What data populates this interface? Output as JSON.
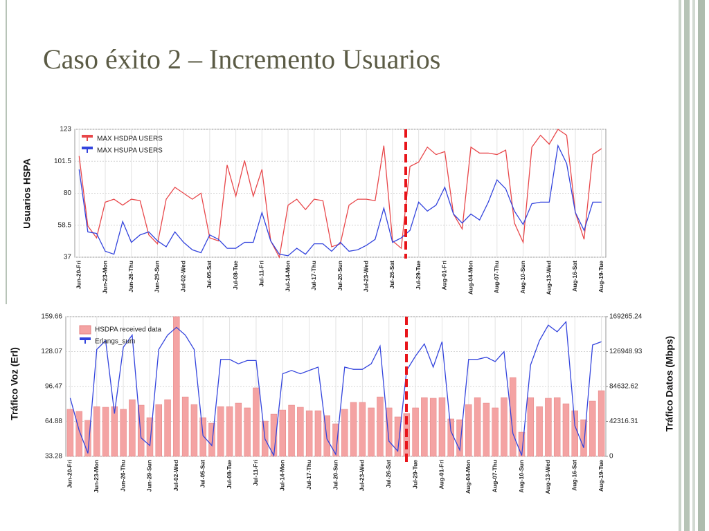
{
  "slide": {
    "title": "Caso éxito 2 – Incremento Usuarios"
  },
  "chart_data": [
    {
      "type": "line",
      "ylabel": "Usuarios HSPA",
      "categories": [
        "Jun-20-Fri",
        null,
        null,
        "Jun-23-Mon",
        null,
        null,
        "Jun-26-Thu",
        null,
        null,
        "Jun-29-Sun",
        null,
        null,
        "Jul-02-Wed",
        null,
        null,
        "Jul-05-Sat",
        null,
        null,
        "Jul-08-Tue",
        null,
        null,
        "Jul-11-Fri",
        null,
        null,
        "Jul-14-Mon",
        null,
        null,
        "Jul-17-Thu",
        null,
        null,
        "Jul-20-Sun",
        null,
        null,
        "Jul-23-Wed",
        null,
        null,
        "Jul-26-Sat",
        null,
        null,
        "Jul-29-Tue",
        null,
        null,
        "Aug-01-Fri",
        null,
        null,
        "Aug-04-Mon",
        null,
        null,
        "Aug-07-Thu",
        null,
        null,
        "Aug-10-Sun",
        null,
        null,
        "Aug-13-Wed",
        null,
        null,
        "Aug-16-Sat",
        null,
        null,
        "Aug-19-Tue"
      ],
      "series": [
        {
          "name": "MAX HSDPA USERS",
          "color": "#e8474a",
          "values": [
            105,
            58,
            50,
            74,
            76,
            72,
            76,
            75,
            52,
            46,
            76,
            84,
            80,
            76,
            80,
            50,
            48,
            99,
            78,
            102,
            78,
            96,
            48,
            37,
            72,
            76,
            69,
            76,
            75,
            44,
            46,
            72,
            76,
            76,
            75,
            112,
            48,
            43,
            98,
            101,
            111,
            106,
            108,
            66,
            56,
            111,
            107,
            107,
            106,
            109,
            60,
            47,
            111,
            119,
            113,
            123,
            119,
            67,
            49,
            106,
            110
          ]
        },
        {
          "name": "MAX HSUPA USERS",
          "color": "#3344dd",
          "values": [
            96,
            54,
            53,
            41,
            39,
            61,
            47,
            52,
            54,
            48,
            44,
            54,
            47,
            42,
            40,
            52,
            49,
            43,
            43,
            47,
            47,
            67,
            48,
            39,
            38,
            43,
            39,
            46,
            46,
            41,
            47,
            41,
            42,
            45,
            49,
            70,
            47,
            50,
            55,
            74,
            68,
            72,
            84,
            66,
            60,
            66,
            62,
            74,
            89,
            83,
            68,
            59,
            73,
            74,
            74,
            112,
            100,
            67,
            55,
            74,
            74
          ]
        }
      ],
      "ylim": [
        37,
        123
      ],
      "yticks": [
        37,
        58.5,
        80,
        101.5,
        123
      ],
      "grid": true,
      "legend": "upper left"
    },
    {
      "type": "combo",
      "ylabel": "Tráfico Voz (Erl)",
      "y2label": "Tráfico Datos (Mbps)",
      "categories": [
        "Jun-20-Fri",
        null,
        null,
        "Jun-23-Mon",
        null,
        null,
        "Jun-26-Thu",
        null,
        null,
        "Jun-29-Sun",
        null,
        null,
        "Jul-02-Wed",
        null,
        null,
        "Jul-05-Sat",
        null,
        null,
        "Jul-08-Tue",
        null,
        null,
        "Jul-11-Fri",
        null,
        null,
        "Jul-14-Mon",
        null,
        null,
        "Jul-17-Thu",
        null,
        null,
        "Jul-20-Sun",
        null,
        null,
        "Jul-23-Wed",
        null,
        null,
        "Jul-26-Sat",
        null,
        null,
        "Jul-29-Tue",
        null,
        null,
        "Aug-01-Fri",
        null,
        null,
        "Aug-04-Mon",
        null,
        null,
        "Aug-07-Thu",
        null,
        null,
        "Aug-10-Sun",
        null,
        null,
        "Aug-13-Wed",
        null,
        null,
        "Aug-16-Sat",
        null,
        null,
        "Aug-19-Tue"
      ],
      "series": [
        {
          "name": "HSDPA received data",
          "type": "bar",
          "axis": "y2",
          "color": "#f4a3a3",
          "values": [
            57000,
            54500,
            43600,
            60300,
            59500,
            60300,
            57000,
            68700,
            62000,
            46900,
            62800,
            68700,
            169265,
            72000,
            62800,
            46900,
            40200,
            60300,
            60300,
            64500,
            58700,
            83000,
            42700,
            51100,
            56100,
            62000,
            59500,
            55300,
            55300,
            49400,
            39400,
            57000,
            65400,
            65400,
            58700,
            72000,
            58700,
            47800,
            52000,
            58700,
            71200,
            70400,
            71200,
            45300,
            44400,
            62800,
            71200,
            64500,
            58700,
            71200,
            95500,
            29300,
            71200,
            60300,
            70400,
            71200,
            63700,
            55300,
            44400,
            67000,
            79600
          ]
        },
        {
          "name": "Erlangs_sum",
          "type": "line",
          "color": "#3344dd",
          "values": [
            86,
            57,
            36,
            130,
            138,
            72,
            132,
            143,
            50,
            43,
            130,
            143,
            150,
            143,
            130,
            52,
            43,
            121,
            121,
            117,
            120,
            120,
            49,
            34,
            108,
            111,
            108,
            111,
            114,
            49,
            35,
            114,
            112,
            112,
            117,
            133,
            47,
            38,
            111,
            124,
            135,
            114,
            137,
            56,
            39,
            121,
            121,
            123,
            119,
            128,
            54,
            34,
            116,
            138,
            152,
            146,
            155,
            61,
            41,
            134,
            137
          ]
        }
      ],
      "ylim": [
        33.28,
        159.66
      ],
      "yticks": [
        33.28,
        64.88,
        96.47,
        128.07,
        159.66
      ],
      "y2lim": [
        0,
        169265.24
      ],
      "y2ticks": [
        0,
        42316.31,
        84632.62,
        126948.93,
        169265.24
      ],
      "grid": true,
      "legend": "upper left"
    }
  ]
}
